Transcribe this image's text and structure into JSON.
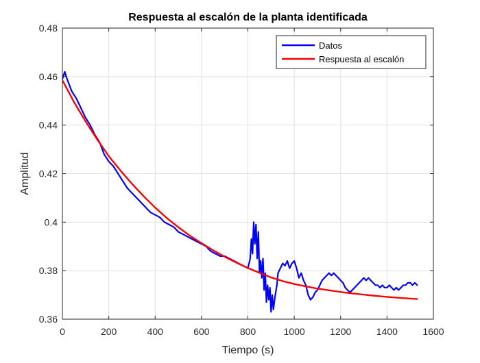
{
  "chart_data": {
    "type": "line",
    "title": "Respuesta al escalón de la planta identificada",
    "xlabel": "Tiempo (s)",
    "ylabel": "Amplitud",
    "xlim": [
      0,
      1600
    ],
    "ylim": [
      0.36,
      0.48
    ],
    "x_ticks": [
      0,
      200,
      400,
      600,
      800,
      1000,
      1200,
      1400,
      1600
    ],
    "y_ticks": [
      0.36,
      0.38,
      0.4,
      0.42,
      0.44,
      0.46,
      0.48
    ],
    "x_tick_labels": [
      "0",
      "200",
      "400",
      "600",
      "800",
      "1000",
      "1200",
      "1400",
      "1600"
    ],
    "y_tick_labels": [
      "0.36",
      "0.38",
      "0.4",
      "0.42",
      "0.44",
      "0.46",
      "0.48"
    ],
    "grid": true,
    "legend_position": "top-right",
    "series": [
      {
        "name": "Datos",
        "color": "#0000ff",
        "x": [
          0,
          10,
          20,
          40,
          60,
          80,
          100,
          120,
          140,
          160,
          180,
          200,
          220,
          240,
          260,
          280,
          300,
          320,
          340,
          360,
          380,
          400,
          420,
          440,
          460,
          480,
          500,
          520,
          540,
          560,
          580,
          600,
          620,
          640,
          660,
          680,
          700,
          720,
          740,
          760,
          780,
          800,
          810,
          815,
          820,
          825,
          830,
          835,
          840,
          845,
          850,
          855,
          860,
          865,
          870,
          875,
          880,
          885,
          890,
          895,
          900,
          905,
          910,
          915,
          920,
          925,
          930,
          940,
          950,
          960,
          970,
          980,
          990,
          1000,
          1010,
          1020,
          1030,
          1040,
          1050,
          1060,
          1070,
          1080,
          1090,
          1100,
          1110,
          1120,
          1130,
          1140,
          1150,
          1160,
          1170,
          1180,
          1190,
          1200,
          1210,
          1220,
          1230,
          1240,
          1250,
          1260,
          1270,
          1280,
          1290,
          1300,
          1310,
          1320,
          1330,
          1340,
          1350,
          1360,
          1370,
          1380,
          1390,
          1400,
          1410,
          1420,
          1430,
          1440,
          1450,
          1460,
          1470,
          1480,
          1490,
          1500,
          1510,
          1520,
          1530
        ],
        "y": [
          0.459,
          0.462,
          0.459,
          0.454,
          0.451,
          0.447,
          0.443,
          0.44,
          0.436,
          0.433,
          0.428,
          0.425,
          0.423,
          0.42,
          0.417,
          0.414,
          0.412,
          0.41,
          0.408,
          0.406,
          0.404,
          0.403,
          0.402,
          0.4,
          0.399,
          0.398,
          0.396,
          0.395,
          0.394,
          0.393,
          0.392,
          0.391,
          0.39,
          0.388,
          0.387,
          0.386,
          0.386,
          0.385,
          0.384,
          0.383,
          0.382,
          0.381,
          0.385,
          0.393,
          0.387,
          0.4,
          0.391,
          0.399,
          0.385,
          0.396,
          0.379,
          0.384,
          0.377,
          0.385,
          0.372,
          0.379,
          0.367,
          0.374,
          0.368,
          0.373,
          0.363,
          0.37,
          0.364,
          0.368,
          0.371,
          0.374,
          0.379,
          0.381,
          0.383,
          0.382,
          0.384,
          0.381,
          0.383,
          0.384,
          0.381,
          0.377,
          0.379,
          0.376,
          0.374,
          0.37,
          0.368,
          0.369,
          0.371,
          0.372,
          0.374,
          0.376,
          0.377,
          0.378,
          0.379,
          0.378,
          0.379,
          0.378,
          0.377,
          0.376,
          0.375,
          0.373,
          0.372,
          0.371,
          0.372,
          0.373,
          0.374,
          0.375,
          0.376,
          0.377,
          0.376,
          0.377,
          0.376,
          0.375,
          0.374,
          0.374,
          0.373,
          0.374,
          0.373,
          0.373,
          0.374,
          0.373,
          0.372,
          0.373,
          0.372,
          0.373,
          0.374,
          0.374,
          0.375,
          0.375,
          0.374,
          0.375,
          0.374
        ]
      },
      {
        "name": "Respuesta al escalón",
        "color": "#ff0000",
        "x": [
          0,
          50,
          100,
          150,
          200,
          250,
          300,
          350,
          400,
          450,
          500,
          550,
          600,
          650,
          700,
          750,
          800,
          850,
          900,
          950,
          1000,
          1050,
          1100,
          1150,
          1200,
          1250,
          1300,
          1350,
          1400,
          1450,
          1500,
          1530
        ],
        "y": [
          0.4585,
          0.4495,
          0.4415,
          0.4341,
          0.4272,
          0.4213,
          0.4158,
          0.4107,
          0.406,
          0.4017,
          0.3979,
          0.3944,
          0.3913,
          0.3884,
          0.3857,
          0.3833,
          0.3811,
          0.3791,
          0.3772,
          0.3757,
          0.3745,
          0.3735,
          0.3726,
          0.3719,
          0.3712,
          0.3706,
          0.3701,
          0.3696,
          0.3692,
          0.3688,
          0.3685,
          0.3683
        ]
      }
    ]
  }
}
